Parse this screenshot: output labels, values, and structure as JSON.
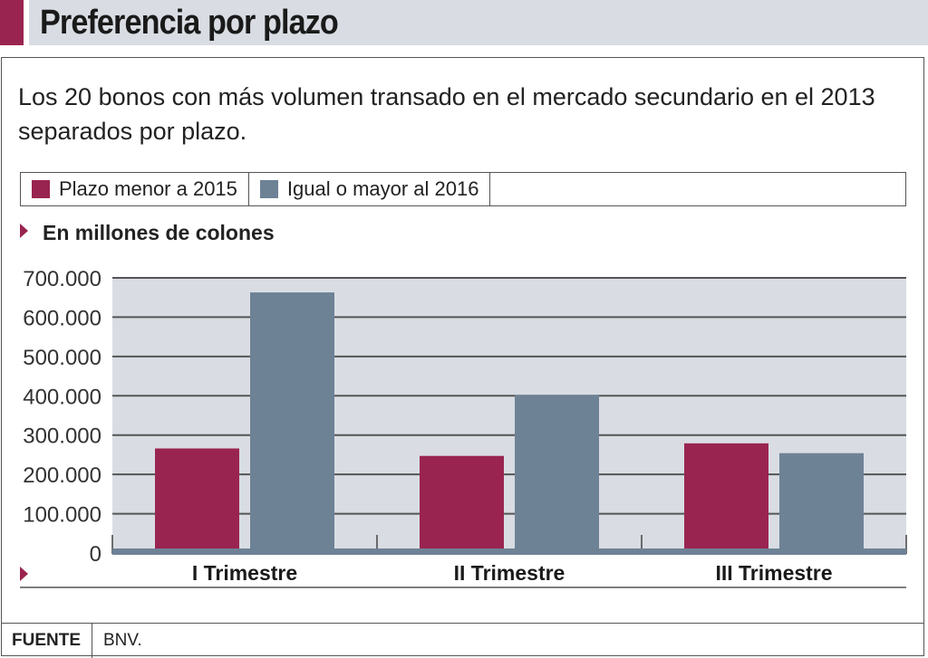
{
  "header": {
    "title": "Preferencia por plazo"
  },
  "subtitle": "Los 20 bonos con más volumen transado en el mercado secundario en el 2013 separados por plazo.",
  "footer": {
    "label": "FUENTE",
    "value": "BNV."
  },
  "chart_data": {
    "type": "bar",
    "title": "Preferencia por plazo",
    "ylabel": "En millones de colones",
    "xlabel": "",
    "categories": [
      "I Trimestre",
      "II Trimestre",
      "III Trimestre"
    ],
    "series": [
      {
        "name": "Plazo menor a 2015",
        "color": "#9a2450",
        "values": [
          266000,
          247000,
          279000
        ]
      },
      {
        "name": "Igual o mayor al 2016",
        "color": "#6e8296",
        "values": [
          663000,
          402000,
          254000
        ]
      }
    ],
    "ylim": [
      0,
      700000
    ],
    "yticks": [
      0,
      100000,
      200000,
      300000,
      400000,
      500000,
      600000,
      700000
    ],
    "ytick_labels": [
      "0",
      "100.000",
      "200.000",
      "300.000",
      "400.000",
      "500.000",
      "600.000",
      "700.000"
    ],
    "grid": true,
    "legend": "top"
  }
}
